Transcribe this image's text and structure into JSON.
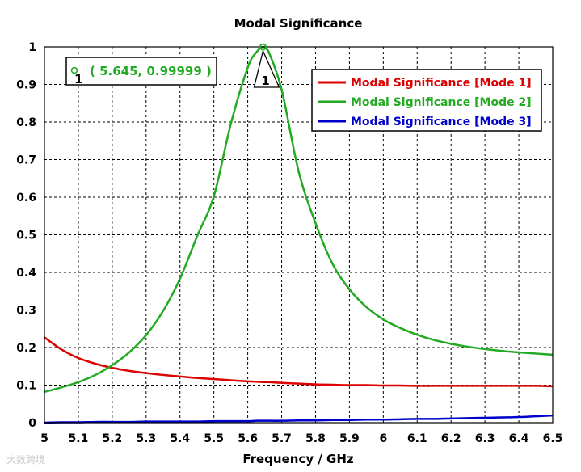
{
  "chart_data": {
    "type": "line",
    "title": "Modal Significance",
    "xlabel": "Frequency / GHz",
    "ylabel": "",
    "xlim": [
      5,
      6.5
    ],
    "ylim": [
      0,
      1
    ],
    "x_ticks": [
      "5",
      "5.1",
      "5.2",
      "5.3",
      "5.4",
      "5.5",
      "5.6",
      "5.7",
      "5.8",
      "5.9",
      "6",
      "6.1",
      "6.2",
      "6.3",
      "6.4",
      "6.5"
    ],
    "y_ticks": [
      "0",
      "0.1",
      "0.2",
      "0.3",
      "0.4",
      "0.5",
      "0.6",
      "0.7",
      "0.8",
      "0.9",
      "1"
    ],
    "grid": true,
    "legend_position": "top-right",
    "x": [
      5.0,
      5.05,
      5.1,
      5.15,
      5.2,
      5.25,
      5.3,
      5.35,
      5.4,
      5.45,
      5.5,
      5.55,
      5.6,
      5.625,
      5.645,
      5.66,
      5.7,
      5.75,
      5.8,
      5.85,
      5.9,
      5.95,
      6.0,
      6.05,
      6.1,
      6.15,
      6.2,
      6.25,
      6.3,
      6.35,
      6.4,
      6.45,
      6.5
    ],
    "series": [
      {
        "name": "Modal Significance [Mode 1]",
        "color": "#dd0000",
        "values": [
          0.227,
          0.195,
          0.172,
          0.157,
          0.146,
          0.138,
          0.132,
          0.127,
          0.123,
          0.119,
          0.116,
          0.113,
          0.11,
          0.109,
          0.108,
          0.108,
          0.106,
          0.104,
          0.102,
          0.101,
          0.1,
          0.1,
          0.099,
          0.099,
          0.098,
          0.098,
          0.098,
          0.098,
          0.098,
          0.098,
          0.098,
          0.098,
          0.097
        ]
      },
      {
        "name": "Modal Significance [Mode 2]",
        "color": "#22aa22",
        "values": [
          0.082,
          0.094,
          0.108,
          0.127,
          0.153,
          0.187,
          0.233,
          0.297,
          0.383,
          0.495,
          0.603,
          0.795,
          0.945,
          0.985,
          0.99999,
          0.99,
          0.886,
          0.669,
          0.531,
          0.423,
          0.355,
          0.308,
          0.275,
          0.252,
          0.234,
          0.22,
          0.21,
          0.202,
          0.196,
          0.191,
          0.187,
          0.184,
          0.181
        ]
      },
      {
        "name": "Modal Significance [Mode 3]",
        "color": "#0000cc",
        "values": [
          0.0,
          0.001,
          0.001,
          0.002,
          0.002,
          0.002,
          0.003,
          0.003,
          0.003,
          0.003,
          0.004,
          0.004,
          0.004,
          0.005,
          0.005,
          0.005,
          0.005,
          0.006,
          0.006,
          0.007,
          0.007,
          0.008,
          0.008,
          0.009,
          0.01,
          0.01,
          0.011,
          0.012,
          0.013,
          0.014,
          0.015,
          0.017,
          0.019
        ]
      }
    ],
    "marker": {
      "id": "1",
      "x": 5.645,
      "y": 0.99999,
      "label": "( 5.645, 0.99999 )",
      "color": "#22aa22"
    }
  },
  "watermark": "大数跨境"
}
